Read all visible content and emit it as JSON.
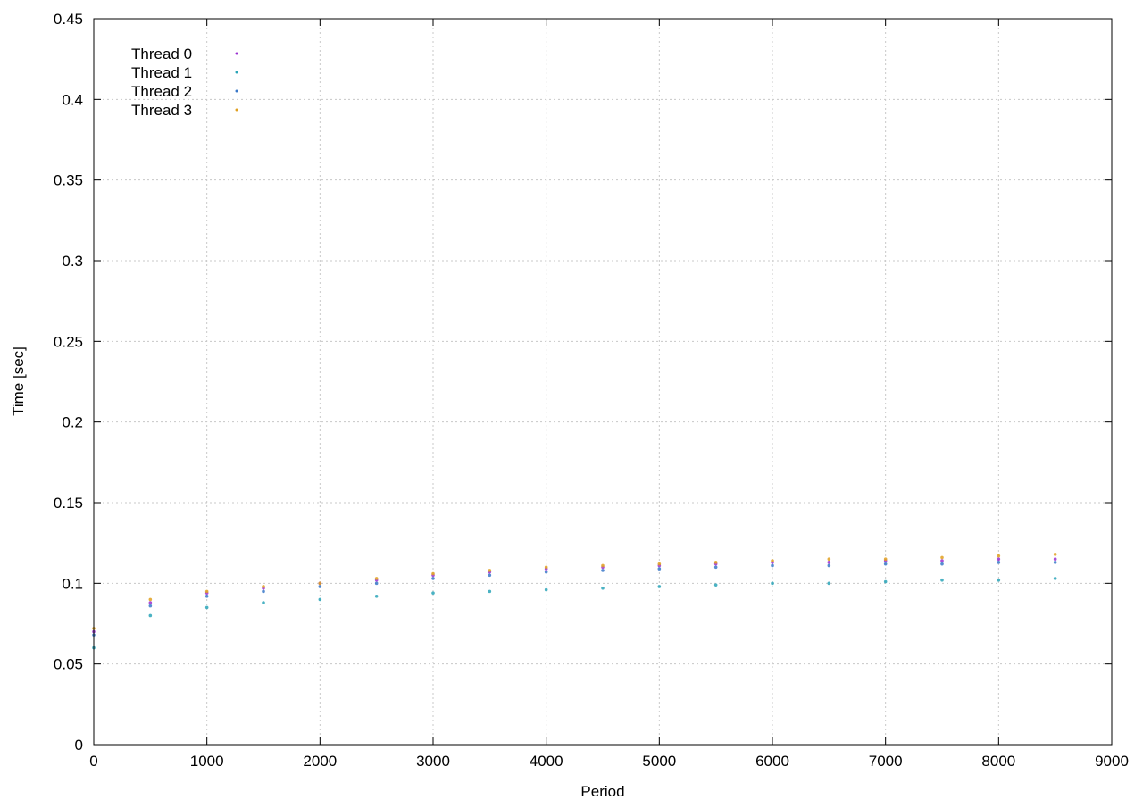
{
  "chart_data": {
    "type": "scatter",
    "title": "",
    "xlabel": "Period",
    "ylabel": "Time [sec]",
    "xlim": [
      0,
      9000
    ],
    "ylim": [
      0,
      0.45
    ],
    "x_ticks": [
      0,
      1000,
      2000,
      3000,
      4000,
      5000,
      6000,
      7000,
      8000,
      9000
    ],
    "x_tick_labels": [
      "0",
      "1000",
      "2000",
      "3000",
      "4000",
      "5000",
      "6000",
      "7000",
      "8000",
      "9000"
    ],
    "y_ticks": [
      0,
      0.05,
      0.1,
      0.15,
      0.2,
      0.25,
      0.3,
      0.35,
      0.4,
      0.45
    ],
    "y_tick_labels": [
      "0",
      "0.05",
      "0.1",
      "0.15",
      "0.2",
      "0.25",
      "0.3",
      "0.35",
      "0.4",
      "0.45"
    ],
    "grid": true,
    "legend_position": "top-left",
    "series": [
      {
        "name": "Thread 0",
        "color": "#9b30d0",
        "x": [
          0,
          500,
          1000,
          1500,
          2000,
          2500,
          3000,
          3500,
          4000,
          4500,
          5000,
          5500,
          6000,
          6500,
          7000,
          7500,
          8000,
          8500
        ],
        "y": [
          0.07,
          0.088,
          0.094,
          0.097,
          0.1,
          0.102,
          0.105,
          0.107,
          0.109,
          0.11,
          0.111,
          0.112,
          0.113,
          0.113,
          0.114,
          0.114,
          0.115,
          0.115
        ]
      },
      {
        "name": "Thread 1",
        "color": "#2aa5b8",
        "x": [
          0,
          500,
          1000,
          1500,
          2000,
          2500,
          3000,
          3500,
          4000,
          4500,
          5000,
          5500,
          6000,
          6500,
          7000,
          7500,
          8000,
          8500
        ],
        "y": [
          0.06,
          0.08,
          0.085,
          0.088,
          0.09,
          0.092,
          0.094,
          0.095,
          0.096,
          0.097,
          0.098,
          0.099,
          0.1,
          0.1,
          0.101,
          0.102,
          0.102,
          0.103
        ]
      },
      {
        "name": "Thread 2",
        "color": "#3a78c9",
        "x": [
          0,
          500,
          1000,
          1500,
          2000,
          2500,
          3000,
          3500,
          4000,
          4500,
          5000,
          5500,
          6000,
          6500,
          7000,
          7500,
          8000,
          8500
        ],
        "y": [
          0.068,
          0.086,
          0.092,
          0.095,
          0.098,
          0.1,
          0.103,
          0.105,
          0.107,
          0.108,
          0.109,
          0.11,
          0.111,
          0.111,
          0.112,
          0.112,
          0.113,
          0.113
        ]
      },
      {
        "name": "Thread 3",
        "color": "#e0a020",
        "x": [
          0,
          500,
          1000,
          1500,
          2000,
          2500,
          3000,
          3500,
          4000,
          4500,
          5000,
          5500,
          6000,
          6500,
          7000,
          7500,
          8000,
          8500
        ],
        "y": [
          0.072,
          0.09,
          0.095,
          0.098,
          0.1,
          0.103,
          0.106,
          0.108,
          0.11,
          0.111,
          0.112,
          0.113,
          0.114,
          0.115,
          0.115,
          0.116,
          0.117,
          0.118
        ]
      }
    ]
  }
}
